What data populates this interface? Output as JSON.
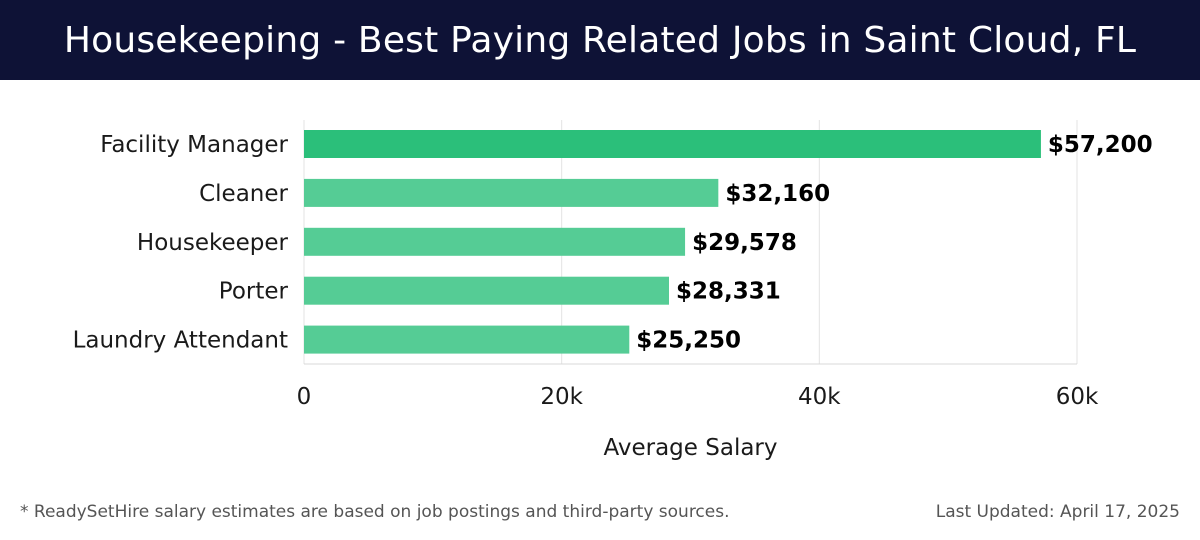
{
  "header": {
    "title": "Housekeeping - Best Paying Related Jobs in Saint Cloud, FL"
  },
  "footer": {
    "note": "* ReadySetHire salary estimates are based on job postings and third-party sources.",
    "updated": "Last Updated: April 17, 2025"
  },
  "colors": {
    "header_bg": "#0e1236",
    "bar_top": "#2bbf7a",
    "bar": "#55cc95"
  },
  "chart_data": {
    "type": "bar",
    "orientation": "horizontal",
    "categories": [
      "Facility Manager",
      "Cleaner",
      "Housekeeper",
      "Porter",
      "Laundry Attendant"
    ],
    "values": [
      57200,
      32160,
      29578,
      28331,
      25250
    ],
    "value_labels": [
      "$57,200",
      "$32,160",
      "$29,578",
      "$28,331",
      "$25,250"
    ],
    "xlabel": "Average Salary",
    "ylabel": "",
    "xlim": [
      0,
      60000
    ],
    "x_ticks": [
      0,
      20000,
      40000,
      60000
    ],
    "x_tick_labels": [
      "0",
      "20k",
      "40k",
      "60k"
    ],
    "grid": true
  }
}
